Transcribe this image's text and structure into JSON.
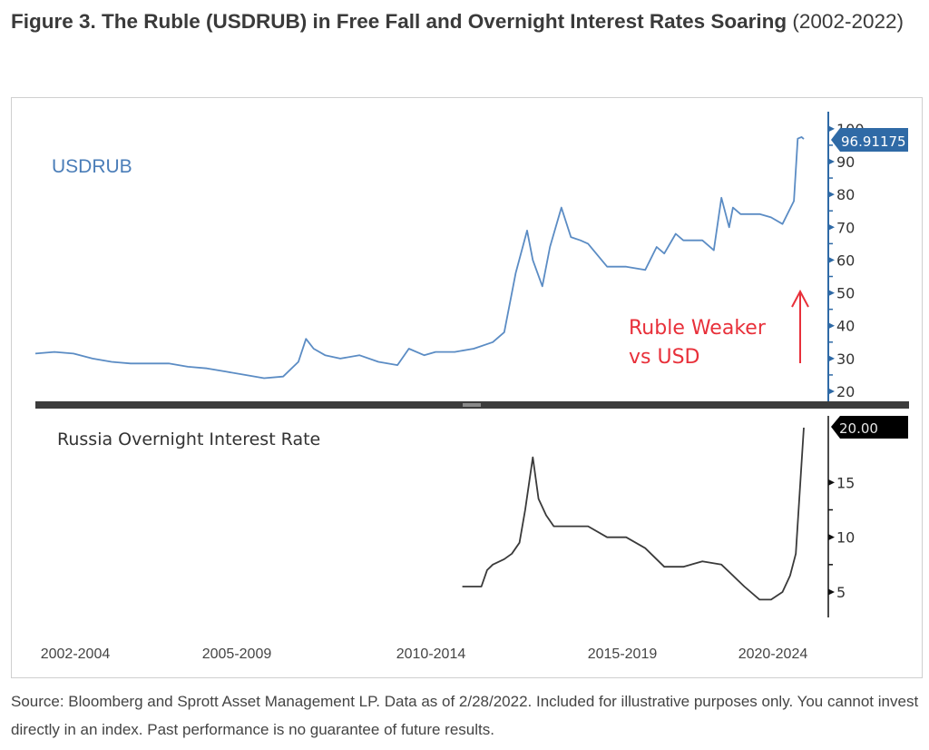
{
  "header": {
    "title_bold": "Figure 3. The Ruble (USDRUB) in Free Fall and Overnight Interest Rates Soaring",
    "title_range": "(2002-2022)"
  },
  "footer": {
    "source": "Source: Bloomberg and Sprott Asset Management LP. Data as of 2/28/2022. Included for illustrative purposes only. You cannot invest directly in an index. Past performance is no guarantee of future results."
  },
  "colors": {
    "usdrub_line": "#5b8cc4",
    "usdrub_label": "#4a7db8",
    "rate_line": "#3a3a3a",
    "annotation": "#e8303a",
    "divider": "#3c3c3c",
    "last_value_top": "#2f6aa6",
    "last_value_bottom": "#000000"
  },
  "chart_data": [
    {
      "type": "line",
      "title": "USDRUB",
      "ylim": [
        17,
        101
      ],
      "yticks": [
        20,
        30,
        40,
        50,
        60,
        70,
        80,
        90,
        100
      ],
      "ytick_labels": [
        "20",
        "30",
        "40",
        "50",
        "60",
        "70",
        "80",
        "90",
        "100"
      ],
      "last_value_label": "96.91175",
      "annotation": {
        "line1": "Ruble Weaker",
        "line2": "vs USD",
        "arrow": "up"
      },
      "x": [
        2002.0,
        2002.5,
        2003.0,
        2003.5,
        2004.0,
        2004.5,
        2005.0,
        2005.5,
        2006.0,
        2006.5,
        2007.0,
        2007.5,
        2008.0,
        2008.5,
        2008.9,
        2009.1,
        2009.3,
        2009.6,
        2010.0,
        2010.5,
        2011.0,
        2011.5,
        2011.8,
        2012.2,
        2012.5,
        2013.0,
        2013.5,
        2014.0,
        2014.3,
        2014.6,
        2014.9,
        2015.05,
        2015.3,
        2015.5,
        2015.8,
        2016.05,
        2016.3,
        2016.5,
        2017.0,
        2017.5,
        2018.0,
        2018.3,
        2018.5,
        2018.8,
        2019.0,
        2019.5,
        2019.8,
        2020.0,
        2020.2,
        2020.3,
        2020.5,
        2020.8,
        2021.0,
        2021.3,
        2021.6,
        2021.9,
        2022.0,
        2022.1,
        2022.16
      ],
      "y": [
        31.5,
        32,
        31.5,
        30,
        29,
        28.5,
        28.5,
        28.5,
        27.5,
        27,
        26,
        25,
        24,
        24.5,
        29,
        36,
        33,
        31,
        30,
        31,
        29,
        28,
        33,
        31,
        32,
        32,
        33,
        35,
        38,
        56,
        69,
        60,
        52,
        64,
        76,
        67,
        66,
        65,
        58,
        58,
        57,
        64,
        62,
        68,
        66,
        66,
        63,
        79,
        70,
        76,
        74,
        74,
        74,
        73,
        71,
        78,
        97,
        97.5,
        96.9
      ]
    },
    {
      "type": "line",
      "title": "Russia Overnight Interest Rate",
      "ylim": [
        2.5,
        21
      ],
      "yticks": [
        5,
        10,
        15
      ],
      "ytick_labels": [
        "5",
        "10",
        "15"
      ],
      "last_value_label": "20.00",
      "x": [
        2013.2,
        2013.7,
        2013.85,
        2014.0,
        2014.3,
        2014.5,
        2014.7,
        2014.85,
        2015.05,
        2015.2,
        2015.4,
        2015.6,
        2016.0,
        2016.5,
        2017.0,
        2017.5,
        2018.0,
        2018.5,
        2019.0,
        2019.5,
        2020.0,
        2020.3,
        2020.6,
        2021.0,
        2021.3,
        2021.6,
        2021.8,
        2021.95,
        2022.16
      ],
      "y": [
        5.5,
        5.5,
        7.0,
        7.5,
        8.0,
        8.5,
        9.5,
        12.5,
        17.3,
        13.5,
        12.0,
        11.0,
        11.0,
        11.0,
        10.0,
        10.0,
        9.0,
        7.3,
        7.3,
        7.8,
        7.5,
        6.5,
        5.5,
        4.3,
        4.3,
        5.0,
        6.5,
        8.5,
        20.0
      ]
    }
  ],
  "x_axis": {
    "labels": [
      "2002-2004",
      "2005-2009",
      "2010-2014",
      "2015-2019",
      "2020-2024"
    ]
  }
}
